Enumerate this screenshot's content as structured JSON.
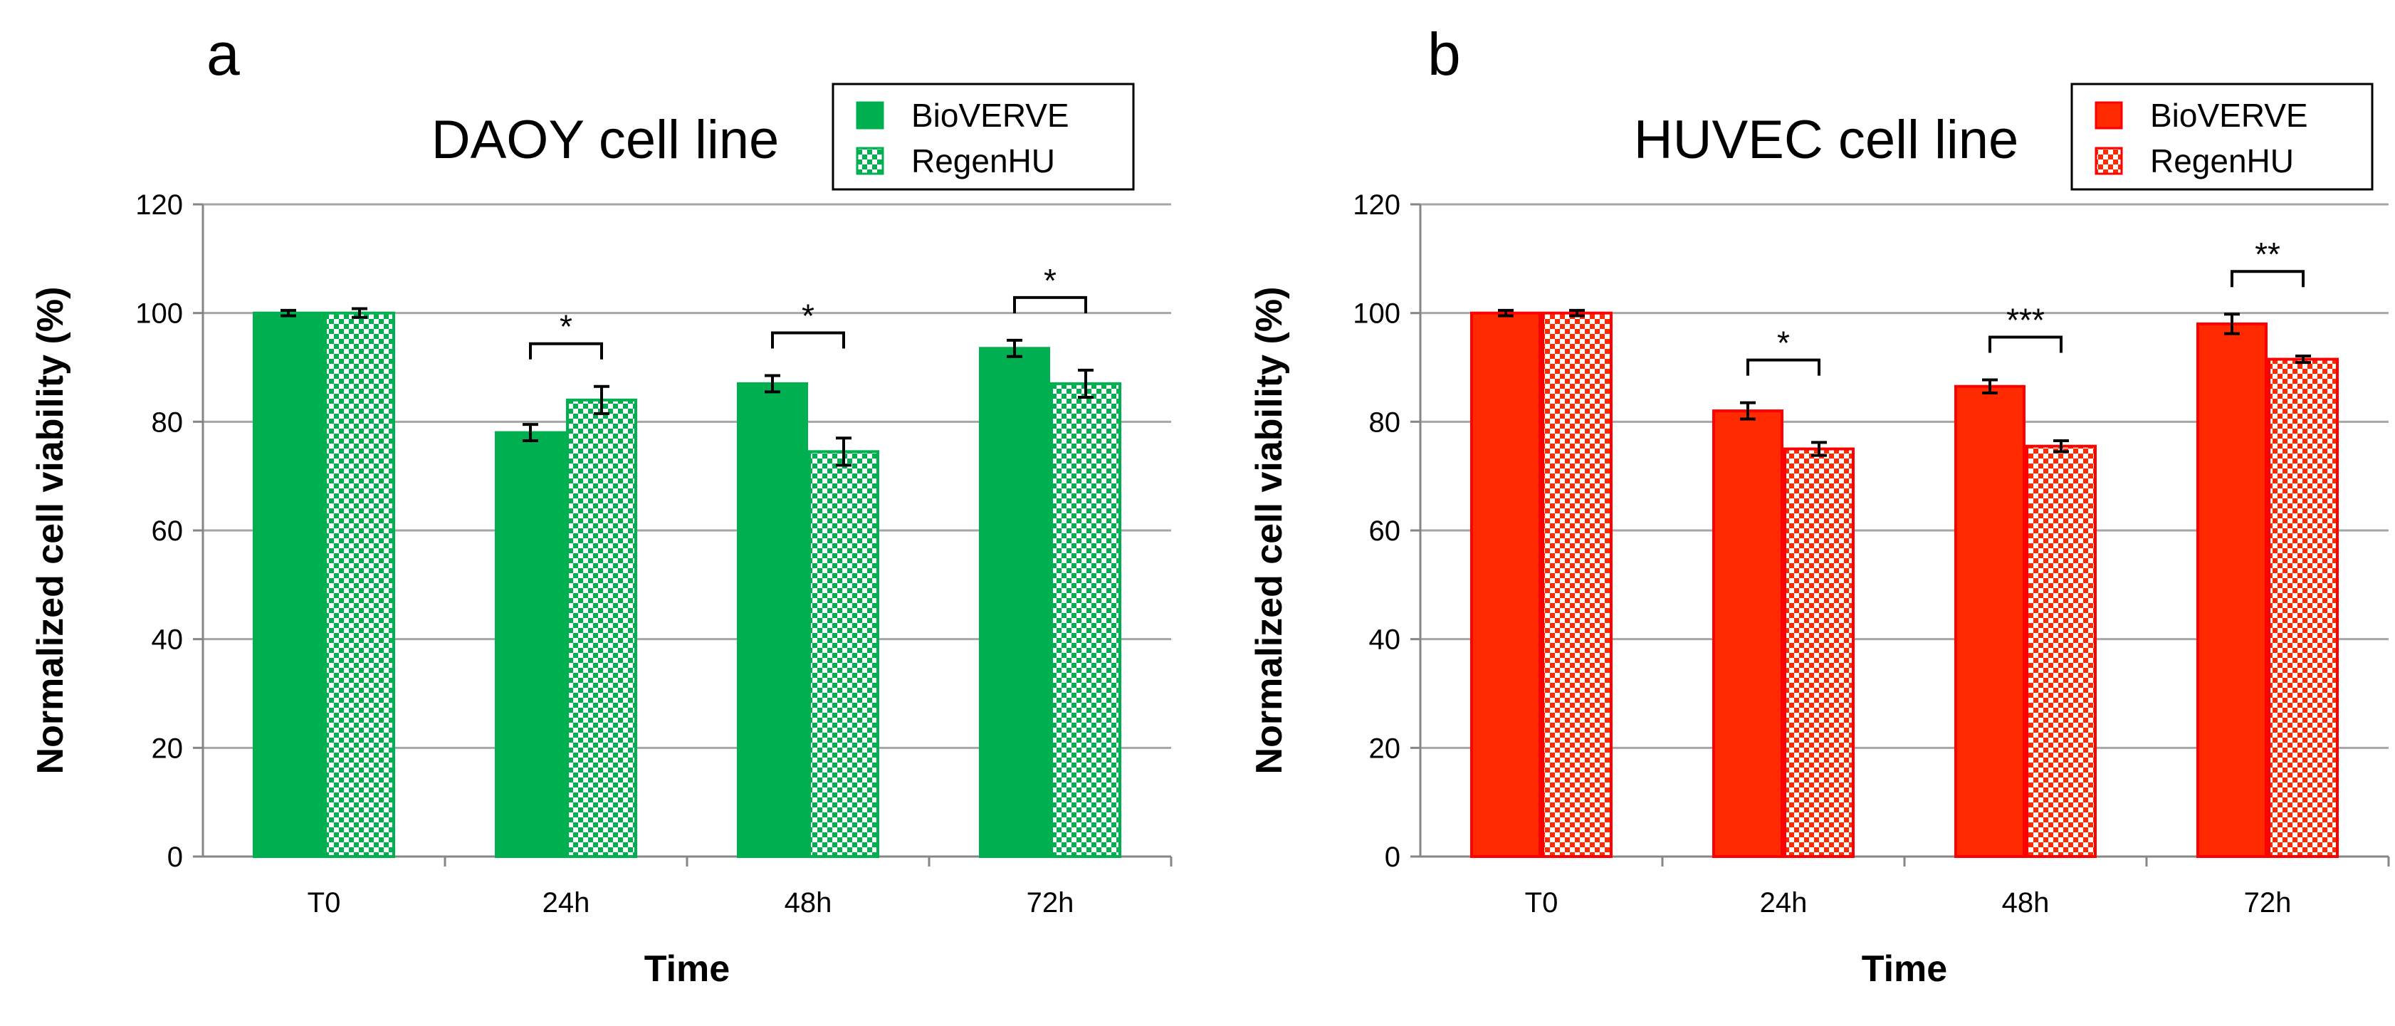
{
  "chart_data": [
    {
      "type": "bar",
      "panel_label": "a",
      "title": "DAOY cell line",
      "xlabel": "Time",
      "ylabel": "Normalized cell viability (%)",
      "categories": [
        "T0",
        "24h",
        "48h",
        "72h"
      ],
      "ylim": [
        0,
        120
      ],
      "yticks": [
        0,
        20,
        40,
        60,
        80,
        100,
        120
      ],
      "grid": true,
      "legend_position": "top-right",
      "colors": {
        "fill": "#00b050",
        "edge": "#00b050"
      },
      "series": [
        {
          "name": "BioVERVE",
          "pattern": "solid",
          "values": [
            100,
            78,
            87,
            93.5
          ],
          "errors": [
            0.5,
            1.5,
            1.5,
            1.5
          ]
        },
        {
          "name": "RegenHU",
          "pattern": "checker",
          "values": [
            100,
            84,
            74.5,
            87
          ],
          "errors": [
            0.8,
            2.5,
            2.5,
            2.5
          ]
        }
      ],
      "significance": [
        {
          "category": "24h",
          "label": "*"
        },
        {
          "category": "48h",
          "label": "*"
        },
        {
          "category": "72h",
          "label": "*"
        }
      ]
    },
    {
      "type": "bar",
      "panel_label": "b",
      "title": "HUVEC cell line",
      "xlabel": "Time",
      "ylabel": "Normalized cell viability (%)",
      "categories": [
        "T0",
        "24h",
        "48h",
        "72h"
      ],
      "ylim": [
        0,
        120
      ],
      "yticks": [
        0,
        20,
        40,
        60,
        80,
        100,
        120
      ],
      "grid": true,
      "legend_position": "top-right",
      "colors": {
        "fill": "#ff2a00",
        "edge": "#ff0000"
      },
      "series": [
        {
          "name": "BioVERVE",
          "pattern": "solid",
          "values": [
            100,
            82,
            86.5,
            98
          ],
          "errors": [
            0.5,
            1.5,
            1.2,
            1.8
          ]
        },
        {
          "name": "RegenHU",
          "pattern": "checker",
          "values": [
            100,
            75,
            75.5,
            91.5
          ],
          "errors": [
            0.5,
            1.2,
            1.0,
            0.6
          ]
        }
      ],
      "significance": [
        {
          "category": "24h",
          "label": "*"
        },
        {
          "category": "48h",
          "label": "***"
        },
        {
          "category": "72h",
          "label": "**"
        }
      ]
    }
  ]
}
